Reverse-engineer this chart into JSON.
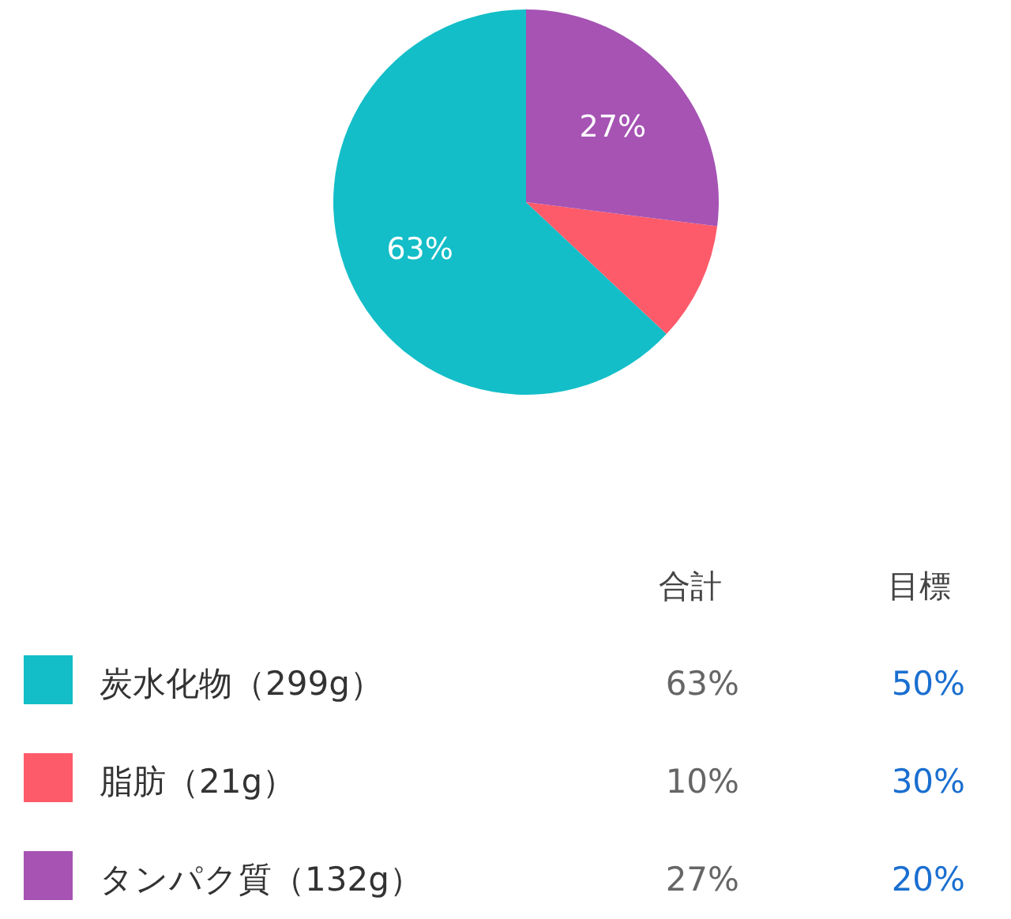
{
  "chart_data": {
    "type": "pie",
    "categories": [
      "炭水化物（299g）",
      "脂肪（21g）",
      "タンパク質（132g）"
    ],
    "values": [
      63,
      10,
      27
    ],
    "colors": [
      "#13bec8",
      "#fd5b6a",
      "#a653b4"
    ],
    "value_labels": [
      "63%",
      null,
      "27%"
    ],
    "annotations": [
      "合計",
      "目標",
      "63%",
      "10%",
      "27%",
      "50%",
      "30%",
      "20%"
    ],
    "legend": "bottom"
  }
}
